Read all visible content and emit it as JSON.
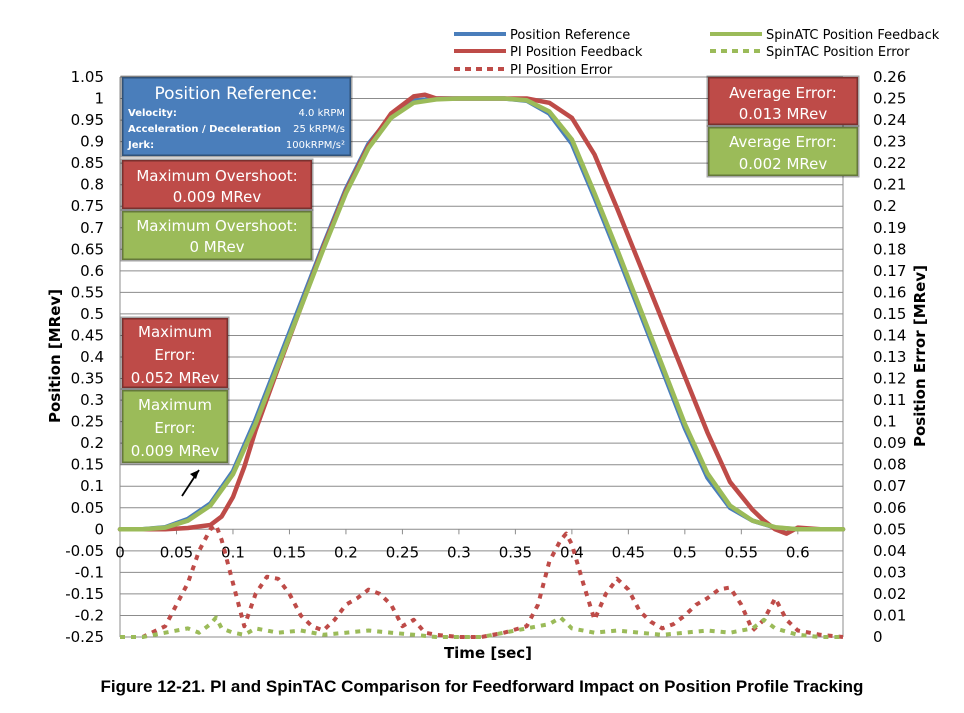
{
  "caption": "Figure 12-21. PI and SpinTAC Comparison for Feedforward Impact on Position Profile Tracking",
  "chart_data": {
    "type": "line",
    "xlabel": "Time [sec]",
    "ylabel_left": "Position [MRev]",
    "ylabel_right": "Position Error [MRev]",
    "xlim": [
      0,
      0.64
    ],
    "ylim_left": [
      -0.25,
      1.05
    ],
    "ylim_right": [
      0,
      0.26
    ],
    "x_ticks": [
      "0",
      "0.05",
      "0.1",
      "0.15",
      "0.2",
      "0.25",
      "0.3",
      "0.35",
      "0.4",
      "0.45",
      "0.5",
      "0.55",
      "0.6"
    ],
    "y_ticks_left": [
      "-0.25",
      "-0.2",
      "-0.15",
      "-0.1",
      "-0.05",
      "0",
      "0.05",
      "0.1",
      "0.15",
      "0.2",
      "0.25",
      "0.3",
      "0.35",
      "0.4",
      "0.45",
      "0.5",
      "0.55",
      "0.6",
      "0.65",
      "0.7",
      "0.75",
      "0.8",
      "0.85",
      "0.9",
      "0.95",
      "1",
      "1.05"
    ],
    "y_ticks_right": [
      "0",
      "0.01",
      "0.02",
      "0.03",
      "0.04",
      "0.05",
      "0.06",
      "0.07",
      "0.08",
      "0.09",
      "0.1",
      "0.11",
      "0.12",
      "0.13",
      "0.14",
      "0.15",
      "0.16",
      "0.17",
      "0.18",
      "0.19",
      "0.2",
      "0.21",
      "0.22",
      "0.23",
      "0.24",
      "0.25",
      "0.26"
    ],
    "grid": true,
    "legend_position": "top-right",
    "series": [
      {
        "name": "Position Reference",
        "axis": "left",
        "color": "#4a7ebb",
        "style": "solid",
        "x": [
          0,
          0.02,
          0.04,
          0.06,
          0.08,
          0.1,
          0.12,
          0.14,
          0.16,
          0.18,
          0.2,
          0.22,
          0.24,
          0.26,
          0.28,
          0.3,
          0.32,
          0.34,
          0.36,
          0.38,
          0.4,
          0.42,
          0.44,
          0.46,
          0.48,
          0.5,
          0.52,
          0.54,
          0.56,
          0.58,
          0.6,
          0.62,
          0.64
        ],
        "y": [
          0,
          0.0,
          0.005,
          0.024,
          0.06,
          0.135,
          0.255,
          0.39,
          0.525,
          0.66,
          0.79,
          0.895,
          0.96,
          0.995,
          1.0,
          1.0,
          1.0,
          1.0,
          0.995,
          0.965,
          0.895,
          0.77,
          0.64,
          0.505,
          0.37,
          0.235,
          0.12,
          0.05,
          0.02,
          0.004,
          0.0,
          0,
          0
        ]
      },
      {
        "name": "PI Position Feedback",
        "axis": "left",
        "color": "#be4b48",
        "style": "solid",
        "x": [
          0,
          0.02,
          0.04,
          0.06,
          0.08,
          0.09,
          0.1,
          0.11,
          0.12,
          0.14,
          0.16,
          0.18,
          0.2,
          0.22,
          0.24,
          0.26,
          0.27,
          0.28,
          0.3,
          0.32,
          0.34,
          0.36,
          0.38,
          0.4,
          0.42,
          0.44,
          0.46,
          0.48,
          0.5,
          0.52,
          0.54,
          0.56,
          0.57,
          0.58,
          0.59,
          0.6,
          0.62,
          0.64
        ],
        "y": [
          0,
          0.0,
          0.0,
          0.003,
          0.01,
          0.03,
          0.075,
          0.145,
          0.23,
          0.375,
          0.515,
          0.655,
          0.785,
          0.89,
          0.965,
          1.005,
          1.009,
          1.0,
          1.0,
          1.0,
          1.0,
          1.0,
          0.99,
          0.955,
          0.87,
          0.745,
          0.615,
          0.485,
          0.355,
          0.225,
          0.11,
          0.045,
          0.02,
          0.0,
          -0.01,
          0.004,
          0.0,
          0
        ]
      },
      {
        "name": "PI Position Error",
        "axis": "right",
        "color": "#be4b48",
        "style": "dashed",
        "x": [
          0,
          0.02,
          0.04,
          0.06,
          0.07,
          0.08,
          0.085,
          0.09,
          0.1,
          0.11,
          0.12,
          0.13,
          0.14,
          0.15,
          0.16,
          0.17,
          0.18,
          0.19,
          0.2,
          0.21,
          0.22,
          0.23,
          0.24,
          0.25,
          0.26,
          0.27,
          0.28,
          0.3,
          0.32,
          0.34,
          0.36,
          0.37,
          0.38,
          0.39,
          0.395,
          0.4,
          0.41,
          0.42,
          0.43,
          0.44,
          0.45,
          0.46,
          0.47,
          0.48,
          0.49,
          0.5,
          0.51,
          0.52,
          0.53,
          0.54,
          0.55,
          0.56,
          0.57,
          0.58,
          0.59,
          0.6,
          0.62,
          0.64
        ],
        "y": [
          0.0,
          0.0,
          0.005,
          0.025,
          0.04,
          0.05,
          0.052,
          0.045,
          0.025,
          0.005,
          0.02,
          0.028,
          0.027,
          0.02,
          0.01,
          0.005,
          0.003,
          0.008,
          0.015,
          0.018,
          0.022,
          0.02,
          0.015,
          0.005,
          0.008,
          0.002,
          0.001,
          0.0,
          0.0,
          0.002,
          0.005,
          0.015,
          0.035,
          0.045,
          0.048,
          0.043,
          0.025,
          0.008,
          0.02,
          0.027,
          0.022,
          0.012,
          0.007,
          0.004,
          0.006,
          0.01,
          0.015,
          0.018,
          0.022,
          0.023,
          0.015,
          0.003,
          0.008,
          0.018,
          0.008,
          0.003,
          0.001,
          0.0
        ]
      },
      {
        "name": "SpinTAC Position Error",
        "axis": "right",
        "color": "#9bbb59",
        "style": "dashed",
        "x": [
          0,
          0.02,
          0.04,
          0.06,
          0.07,
          0.08,
          0.085,
          0.09,
          0.1,
          0.11,
          0.12,
          0.14,
          0.16,
          0.18,
          0.2,
          0.22,
          0.24,
          0.26,
          0.28,
          0.3,
          0.32,
          0.34,
          0.36,
          0.38,
          0.39,
          0.4,
          0.42,
          0.44,
          0.46,
          0.48,
          0.5,
          0.52,
          0.54,
          0.56,
          0.57,
          0.58,
          0.6,
          0.62,
          0.64
        ],
        "y": [
          0.0,
          0.0,
          0.002,
          0.004,
          0.002,
          0.006,
          0.009,
          0.004,
          0.002,
          0.001,
          0.004,
          0.002,
          0.003,
          0.001,
          0.002,
          0.003,
          0.002,
          0.001,
          0.0,
          0.0,
          0.0,
          0.002,
          0.004,
          0.006,
          0.009,
          0.004,
          0.002,
          0.003,
          0.002,
          0.001,
          0.002,
          0.003,
          0.002,
          0.004,
          0.008,
          0.004,
          0.001,
          0.0,
          0.0
        ]
      },
      {
        "name": "SpinATC Position Feedback",
        "axis": "left",
        "color": "#9bbb59",
        "style": "solid",
        "x": [
          0,
          0.02,
          0.04,
          0.06,
          0.08,
          0.1,
          0.12,
          0.14,
          0.16,
          0.18,
          0.2,
          0.22,
          0.24,
          0.26,
          0.28,
          0.3,
          0.32,
          0.34,
          0.36,
          0.38,
          0.4,
          0.42,
          0.44,
          0.46,
          0.48,
          0.5,
          0.52,
          0.54,
          0.56,
          0.58,
          0.6,
          0.62,
          0.64
        ],
        "y": [
          0,
          0.0,
          0.004,
          0.02,
          0.055,
          0.128,
          0.245,
          0.38,
          0.515,
          0.65,
          0.78,
          0.885,
          0.955,
          0.99,
          0.998,
          1.0,
          1.0,
          1.0,
          0.996,
          0.97,
          0.905,
          0.78,
          0.65,
          0.515,
          0.38,
          0.245,
          0.13,
          0.055,
          0.02,
          0.005,
          0.0,
          0,
          0
        ]
      }
    ],
    "annotations": {
      "reference_box": {
        "title": "Position Reference:",
        "rows": [
          {
            "label": "Velocity:",
            "value": "4.0 kRPM"
          },
          {
            "label": "Acceleration / Deceleration",
            "value": "25 kRPM/s"
          },
          {
            "label": "Jerk:",
            "value": "100kRPM/s²"
          }
        ]
      },
      "pi_overshoot": [
        "Maximum Overshoot:",
        "0.009 MRev"
      ],
      "spintac_overshoot": [
        "Maximum Overshoot:",
        "0 MRev"
      ],
      "pi_max_error": [
        "Maximum",
        "Error:",
        "0.052 MRev"
      ],
      "spintac_max_error": [
        "Maximum",
        "Error:",
        "0.009 MRev"
      ],
      "pi_avg_error": [
        "Average Error:",
        "0.013 MRev"
      ],
      "spintac_avg_error": [
        "Average Error:",
        "0.002 MRev"
      ]
    },
    "colors": {
      "reference_box": "#4a7ebb",
      "pi_box": "#be4b48",
      "spintac_box": "#9bbb59"
    }
  }
}
